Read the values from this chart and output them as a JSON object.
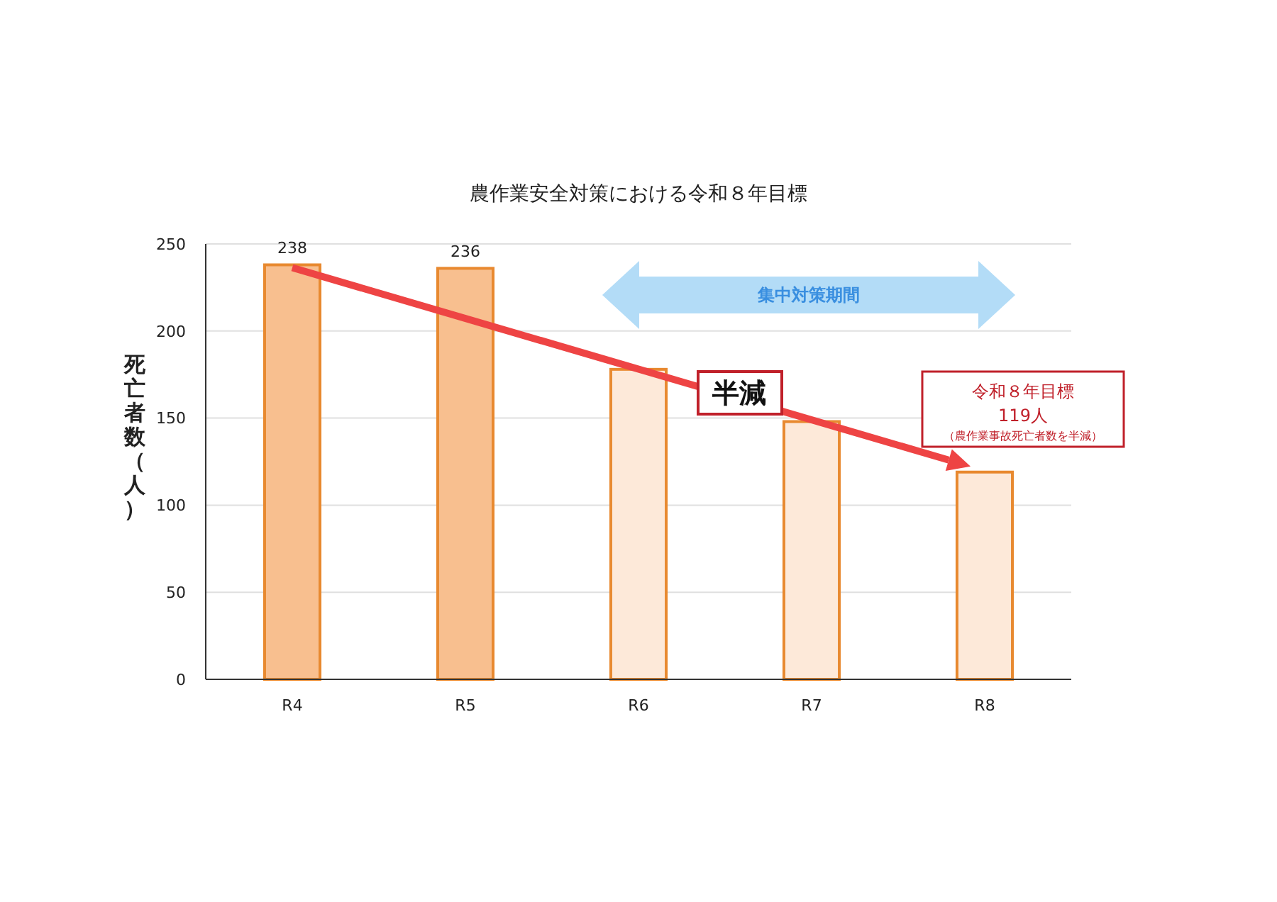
{
  "chart_data": {
    "type": "bar",
    "title": "農作業安全対策における令和８年目標",
    "ylabel": "死亡者数（人）",
    "categories": [
      "R4",
      "R5",
      "R6",
      "R7",
      "R8"
    ],
    "values": [
      238,
      236,
      178,
      148,
      119
    ],
    "colors": [
      "#f8bf8f",
      "#f8bf8f",
      "#fde9d9",
      "#fde9d9",
      "#fde9d9"
    ],
    "value_labels": [
      "238",
      "236",
      null,
      null,
      null
    ],
    "ylim": [
      0,
      250
    ],
    "yticks": [
      0,
      50,
      100,
      150,
      200,
      250
    ],
    "grid": "y",
    "annotations": [
      "集中対策期間",
      "半減",
      "令和８年目標",
      "119人",
      "（農作業事故死亡者数を半減）"
    ]
  }
}
